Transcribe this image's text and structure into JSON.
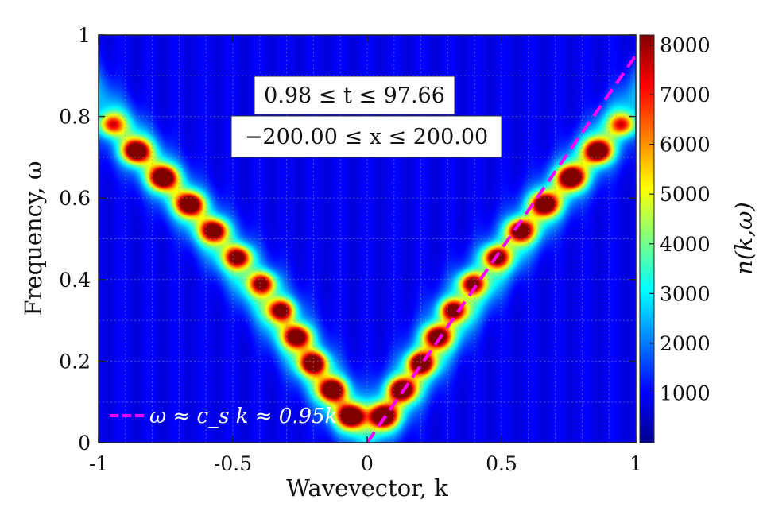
{
  "chart_data": {
    "type": "heatmap",
    "title": "",
    "xlabel": "Wavevector, k",
    "ylabel": "Frequency, ω",
    "xlim": [
      -1,
      1
    ],
    "ylim": [
      0,
      1
    ],
    "x_ticks": [
      -1,
      -0.5,
      0,
      0.5,
      1
    ],
    "x_tick_labels": [
      "-1",
      "-0.5",
      "0",
      "0.5",
      "1"
    ],
    "y_ticks": [
      0,
      0.2,
      0.4,
      0.6,
      0.8,
      1
    ],
    "y_tick_labels": [
      "0",
      "0.2",
      "0.4",
      "0.6",
      "0.8",
      "1"
    ],
    "grid": true,
    "colormap": "jet",
    "colorbar": {
      "label": "n(k,ω)",
      "range": [
        0,
        8200
      ],
      "ticks": [
        1000,
        2000,
        3000,
        4000,
        5000,
        6000,
        7000,
        8000
      ],
      "tick_labels": [
        "1000",
        "2000",
        "3000",
        "4000",
        "5000",
        "6000",
        "7000",
        "8000"
      ]
    },
    "annotations": {
      "time_range": "0.98 ≤ t ≤ 97.66",
      "space_range": "−200.00 ≤ x ≤ 200.00"
    },
    "peaks": [
      {
        "k": -0.95,
        "omega": 0.78,
        "n": 4500
      },
      {
        "k": -0.86,
        "omega": 0.715,
        "n": 7600
      },
      {
        "k": -0.76,
        "omega": 0.65,
        "n": 7800
      },
      {
        "k": -0.66,
        "omega": 0.585,
        "n": 7500
      },
      {
        "k": -0.57,
        "omega": 0.52,
        "n": 6800
      },
      {
        "k": -0.48,
        "omega": 0.455,
        "n": 6300
      },
      {
        "k": -0.39,
        "omega": 0.39,
        "n": 6000
      },
      {
        "k": -0.32,
        "omega": 0.325,
        "n": 6200
      },
      {
        "k": -0.26,
        "omega": 0.26,
        "n": 6800
      },
      {
        "k": -0.2,
        "omega": 0.195,
        "n": 7000
      },
      {
        "k": -0.13,
        "omega": 0.13,
        "n": 7300
      },
      {
        "k": -0.06,
        "omega": 0.065,
        "n": 7900
      },
      {
        "k": 0.06,
        "omega": 0.065,
        "n": 7900
      },
      {
        "k": 0.13,
        "omega": 0.13,
        "n": 7300
      },
      {
        "k": 0.2,
        "omega": 0.195,
        "n": 7000
      },
      {
        "k": 0.26,
        "omega": 0.26,
        "n": 6800
      },
      {
        "k": 0.32,
        "omega": 0.325,
        "n": 6200
      },
      {
        "k": 0.39,
        "omega": 0.39,
        "n": 6000
      },
      {
        "k": 0.48,
        "omega": 0.455,
        "n": 6300
      },
      {
        "k": 0.57,
        "omega": 0.52,
        "n": 6800
      },
      {
        "k": 0.66,
        "omega": 0.585,
        "n": 7500
      },
      {
        "k": 0.76,
        "omega": 0.65,
        "n": 7800
      },
      {
        "k": 0.86,
        "omega": 0.715,
        "n": 7600
      },
      {
        "k": 0.95,
        "omega": 0.78,
        "n": 4500
      }
    ],
    "series": [
      {
        "name": "ω ≈ c_s k ≈ 0.95k",
        "type": "line",
        "style": "dashed",
        "color": "#ff00ff",
        "x": [
          0,
          1
        ],
        "y": [
          0,
          0.95
        ]
      }
    ],
    "legend": {
      "entry": "ω ≈ c_s k ≈ 0.95k",
      "placement": "bottom-left"
    }
  }
}
